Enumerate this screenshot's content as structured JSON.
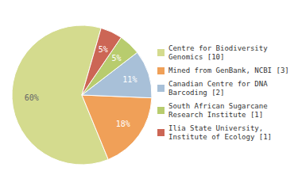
{
  "chart_data": {
    "type": "pie",
    "categories": [
      "Centre for Biodiversity\nGenomics [10]",
      "Mined from GenBank, NCBI [3]",
      "Canadian Centre for DNA\nBarcoding [2]",
      "South African Sugarcane\nResearch Institute [1]",
      "Ilia State University,\nInstitute of Ecology [1]"
    ],
    "values": [
      60,
      18,
      11,
      5,
      5
    ],
    "value_labels": [
      "60%",
      "18%",
      "11%",
      "5%",
      "5%"
    ],
    "data_labels": true,
    "colors": [
      "#d4db8e",
      "#f0a058",
      "#a8c0d8",
      "#b8cc6e",
      "#cc6655"
    ]
  }
}
